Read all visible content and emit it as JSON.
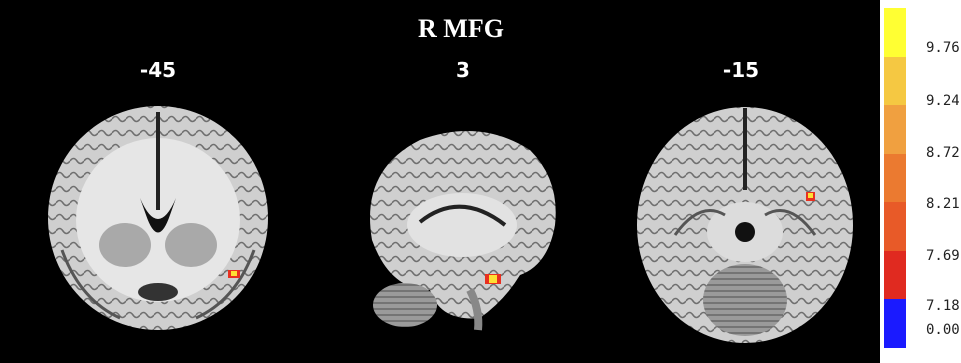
{
  "figure": {
    "title": "R MFG",
    "slices": [
      {
        "view": "coronal",
        "coordinate": "-45"
      },
      {
        "view": "sagittal",
        "coordinate": "3"
      },
      {
        "view": "axial",
        "coordinate": "-15"
      }
    ]
  },
  "colorbar": {
    "labels": [
      "9.76",
      "9.24",
      "8.72",
      "8.21",
      "7.69",
      "7.18",
      "0.00"
    ],
    "colors": [
      "#ffff33",
      "#f5c842",
      "#f0a040",
      "#eb7a30",
      "#e85a28",
      "#e02a20",
      "#1a1aff"
    ]
  },
  "colors": {
    "background": "#000000",
    "activation_hot": "#ffe033",
    "activation_core": "#e83020"
  }
}
